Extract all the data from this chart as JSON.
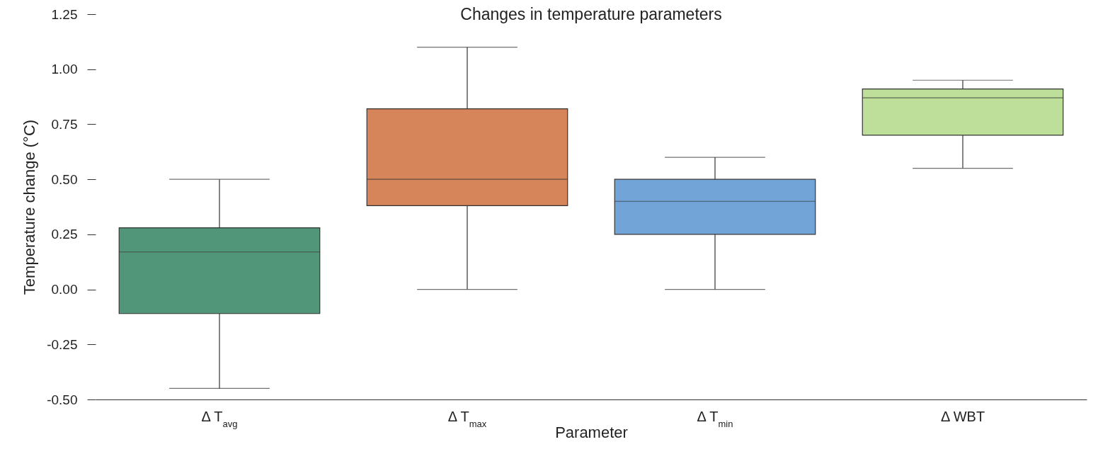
{
  "chart_data": {
    "type": "box",
    "title": "Changes in temperature parameters",
    "xlabel": "Parameter",
    "ylabel": "Temperature change (°C)",
    "categories": [
      "Δ T$_{avg}$",
      "Δ T$_{max}$",
      "Δ T$_{min}$",
      "Δ WBT"
    ],
    "colors": [
      "#529679",
      "#d6855b",
      "#72a4d8",
      "#bddf9a"
    ],
    "boxes": [
      {
        "low": -0.45,
        "q1": -0.11,
        "median": 0.17,
        "q3": 0.28,
        "high": 0.5
      },
      {
        "low": 0,
        "q1": 0.38,
        "median": 0.5,
        "q3": 0.82,
        "high": 1.1
      },
      {
        "low": 0,
        "q1": 0.25,
        "median": 0.4,
        "q3": 0.5,
        "high": 0.6
      },
      {
        "low": 0.55,
        "q1": 0.7,
        "median": 0.87,
        "q3": 0.91,
        "high": 0.95
      }
    ],
    "ylim": [
      -0.5,
      1.25
    ],
    "yticks": [
      {
        "value": -0.5,
        "label": "-0.50"
      },
      -0.25,
      {
        "value": 0,
        "label": "0.00"
      },
      0.25,
      {
        "value": 0.5,
        "label": "0.50"
      },
      0.75,
      {
        "value": 1,
        "label": "1.00"
      },
      1.25
    ]
  }
}
